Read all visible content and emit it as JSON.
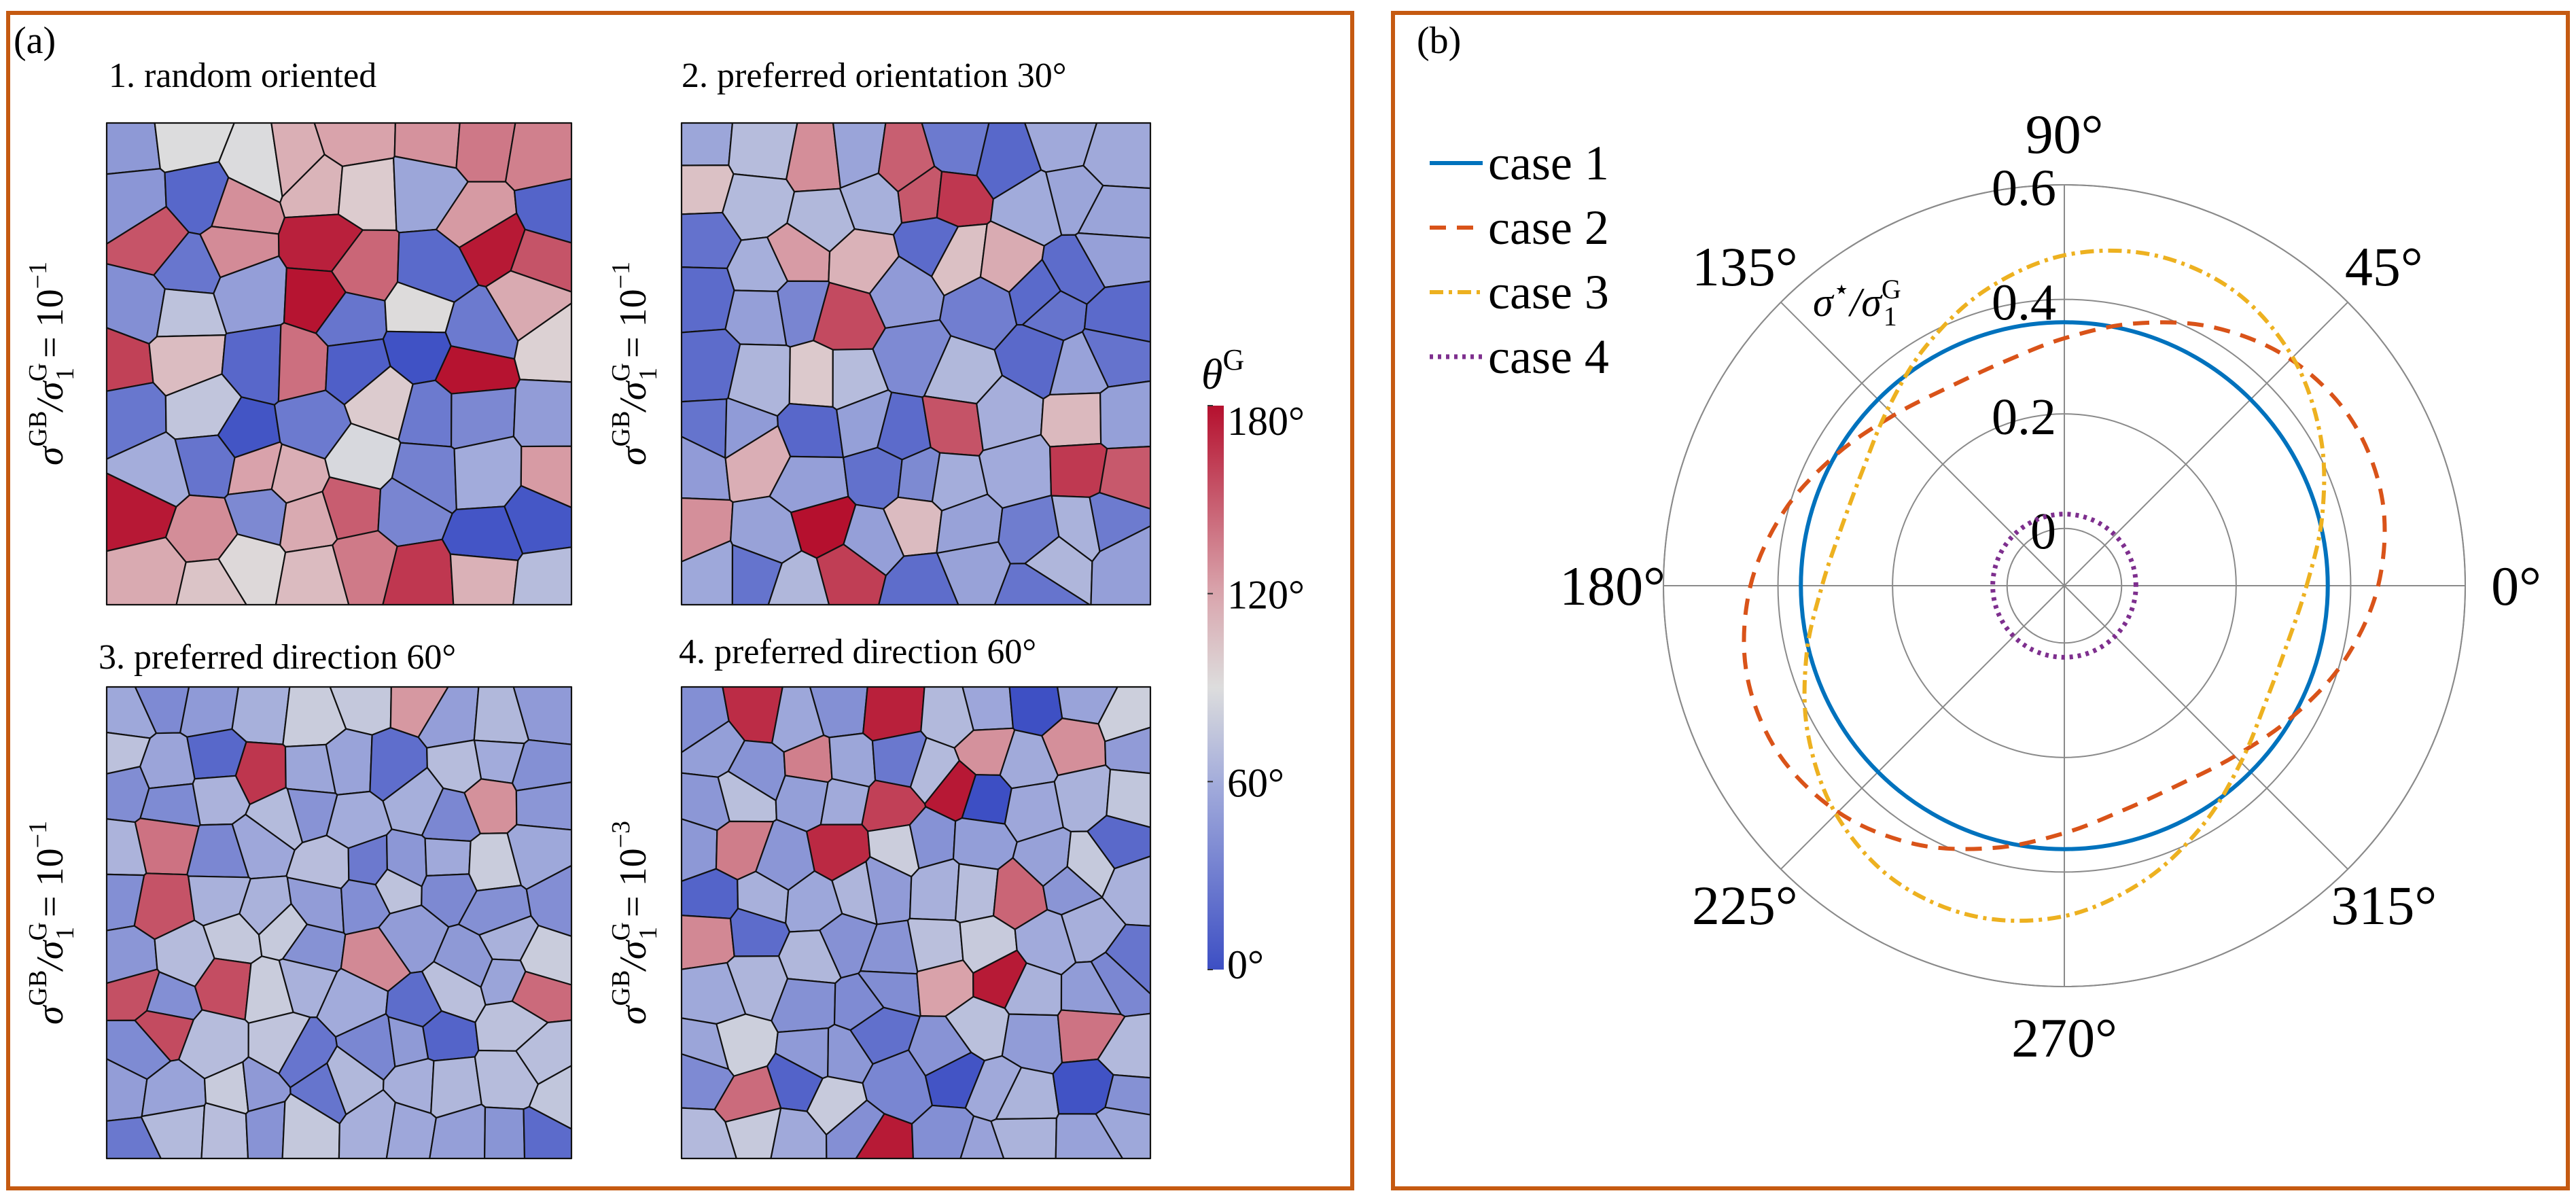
{
  "panel_a": {
    "label": "(a)",
    "maps": [
      {
        "title": "1. random oriented",
        "ylabel": {
          "num": "σ",
          "num_sup": "GB",
          "den": "/σ",
          "den_sup": "G",
          "den_sub": "1",
          "eq": " = 10",
          "exp": "−1"
        }
      },
      {
        "title": "2. preferred orientation 30°",
        "ylabel": {
          "num": "σ",
          "num_sup": "GB",
          "den": "/σ",
          "den_sup": "G",
          "den_sub": "1",
          "eq": " = 10",
          "exp": "−1"
        }
      },
      {
        "title": "3. preferred direction 60°",
        "ylabel": {
          "num": "σ",
          "num_sup": "GB",
          "den": "/σ",
          "den_sup": "G",
          "den_sub": "1",
          "eq": " = 10",
          "exp": "−1"
        }
      },
      {
        "title": "4. preferred direction 60°",
        "ylabel": {
          "num": "σ",
          "num_sup": "GB",
          "den": "/σ",
          "den_sup": "G",
          "den_sub": "1",
          "eq": " = 10",
          "exp": "−3"
        }
      }
    ],
    "colorbar": {
      "label": "θ",
      "label_sup": "G",
      "colormap": "coolwarm",
      "range": [
        0,
        180
      ],
      "ticks": [
        {
          "value": 0,
          "label": "0°"
        },
        {
          "value": 60,
          "label": "60°"
        },
        {
          "value": 120,
          "label": "120°"
        },
        {
          "value": 180,
          "label": "180°"
        }
      ],
      "colors": {
        "low": "#3d4fc4",
        "mid": "#dddddd",
        "high": "#b5102e"
      }
    }
  },
  "panel_b": {
    "label": "(b)"
  },
  "chart_data": {
    "type": "line",
    "coordinate_system": "polar",
    "theta_unit": "deg",
    "rlim": [
      -0.1,
      0.6
    ],
    "r_ticks": [
      {
        "value": 0,
        "label": "0"
      },
      {
        "value": 0.2,
        "label": "0.2"
      },
      {
        "value": 0.4,
        "label": "0.4"
      },
      {
        "value": 0.6,
        "label": "0.6"
      }
    ],
    "theta_ticks": [
      {
        "value": 0,
        "label": "0°"
      },
      {
        "value": 45,
        "label": "45°"
      },
      {
        "value": 90,
        "label": "90°"
      },
      {
        "value": 135,
        "label": "135°"
      },
      {
        "value": 180,
        "label": "180°"
      },
      {
        "value": 225,
        "label": "225°"
      },
      {
        "value": 270,
        "label": "270°"
      },
      {
        "value": 315,
        "label": "315°"
      }
    ],
    "rlabel": {
      "num": "σ",
      "num_sup": "⋆",
      "den": "/σ",
      "den_sup": "G",
      "den_sub": "1"
    },
    "grid": true,
    "legend_position": "top-left",
    "theta": [
      0,
      15,
      30,
      45,
      60,
      75,
      90,
      105,
      120,
      135,
      150,
      165,
      180,
      195,
      210,
      225,
      240,
      255,
      270,
      285,
      300,
      315,
      330,
      345
    ],
    "series": [
      {
        "name": "case 1",
        "color": "#0072bd",
        "style": "solid",
        "r": [
          0.36,
          0.36,
          0.36,
          0.36,
          0.36,
          0.36,
          0.36,
          0.36,
          0.36,
          0.36,
          0.36,
          0.36,
          0.36,
          0.36,
          0.36,
          0.36,
          0.36,
          0.36,
          0.36,
          0.36,
          0.36,
          0.36,
          0.36,
          0.36
        ]
      },
      {
        "name": "case 2",
        "color": "#d95319",
        "style": "dashed",
        "r": [
          0.448,
          0.475,
          0.479,
          0.459,
          0.421,
          0.374,
          0.332,
          0.305,
          0.301,
          0.321,
          0.359,
          0.406,
          0.448,
          0.475,
          0.479,
          0.459,
          0.421,
          0.374,
          0.332,
          0.305,
          0.301,
          0.321,
          0.359,
          0.406
        ]
      },
      {
        "name": "case 3",
        "color": "#edb120",
        "style": "dashdot",
        "r": [
          0.323,
          0.366,
          0.417,
          0.464,
          0.494,
          0.498,
          0.477,
          0.434,
          0.383,
          0.336,
          0.306,
          0.302,
          0.323,
          0.366,
          0.417,
          0.464,
          0.494,
          0.498,
          0.477,
          0.434,
          0.383,
          0.336,
          0.306,
          0.302
        ]
      },
      {
        "name": "case 4",
        "color": "#7e2f8e",
        "style": "dotted",
        "r": [
          0.025,
          0.025,
          0.025,
          0.025,
          0.025,
          0.025,
          0.025,
          0.025,
          0.025,
          0.025,
          0.025,
          0.025,
          0.025,
          0.025,
          0.025,
          0.025,
          0.025,
          0.025,
          0.025,
          0.025,
          0.025,
          0.025,
          0.025,
          0.025
        ]
      }
    ]
  }
}
